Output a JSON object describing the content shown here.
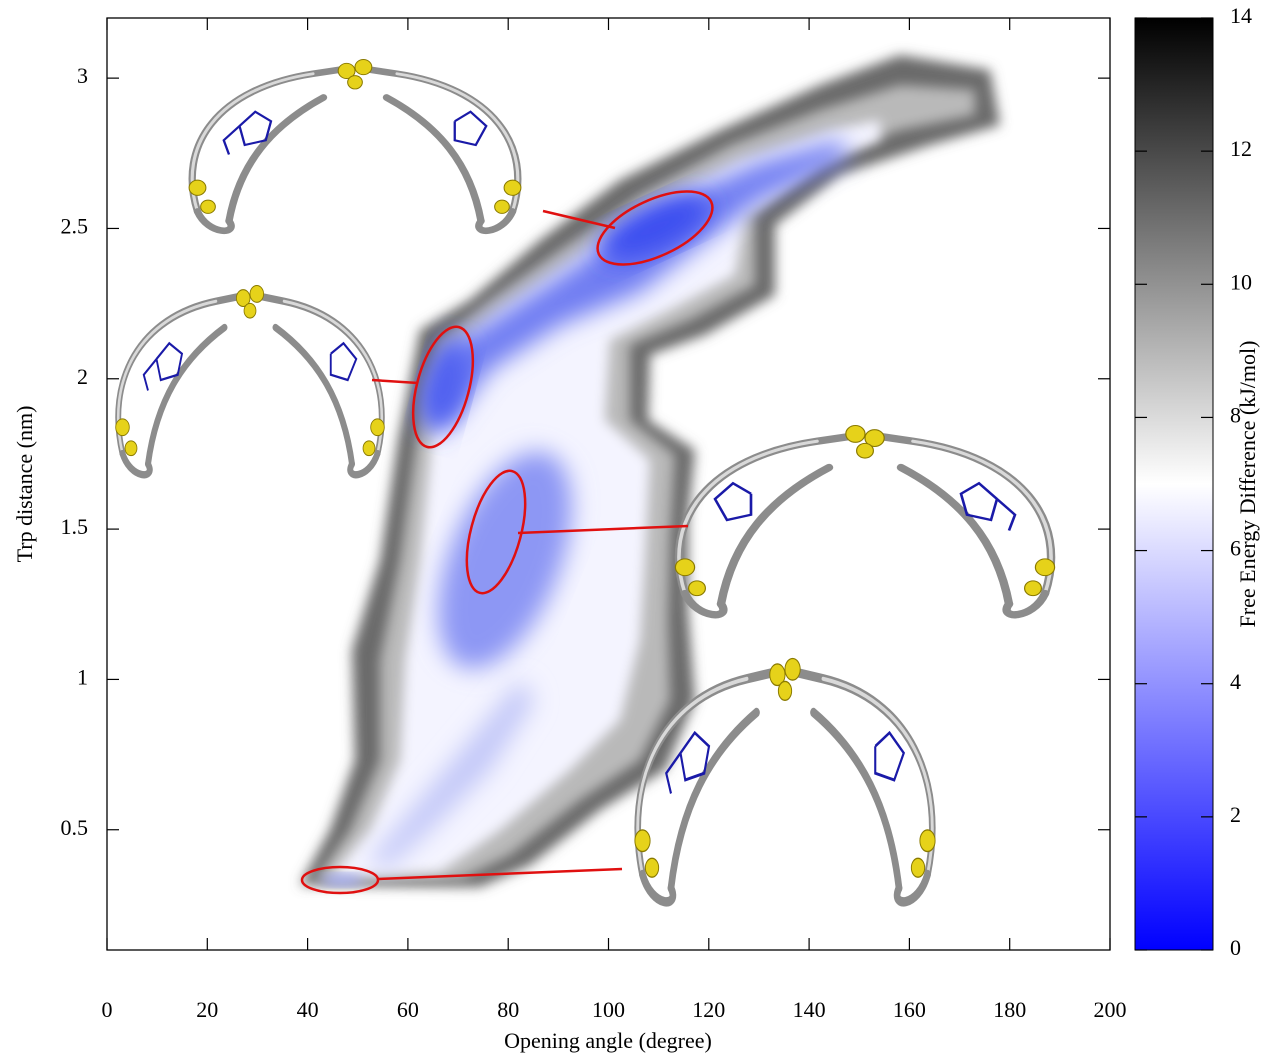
{
  "chart_data": {
    "type": "heatmap",
    "x_label": "Opening angle (degree)",
    "y_label": "Trp distance (nm)",
    "xlim": [
      0,
      200
    ],
    "xticks": [
      0,
      20,
      40,
      60,
      80,
      100,
      120,
      140,
      160,
      180,
      200
    ],
    "ylim": [
      0.1,
      3.2
    ],
    "yticks": [
      0.5,
      1,
      1.5,
      2,
      2.5,
      3
    ],
    "colorbar": {
      "label": "Free Energy Difference (kJ/mol)",
      "lim": [
        0,
        14
      ],
      "ticks": [
        0,
        2,
        4,
        6,
        8,
        10,
        12,
        14
      ]
    },
    "colormap": [
      "#0000ff",
      "#ffffff",
      "#000000"
    ]
  }
}
